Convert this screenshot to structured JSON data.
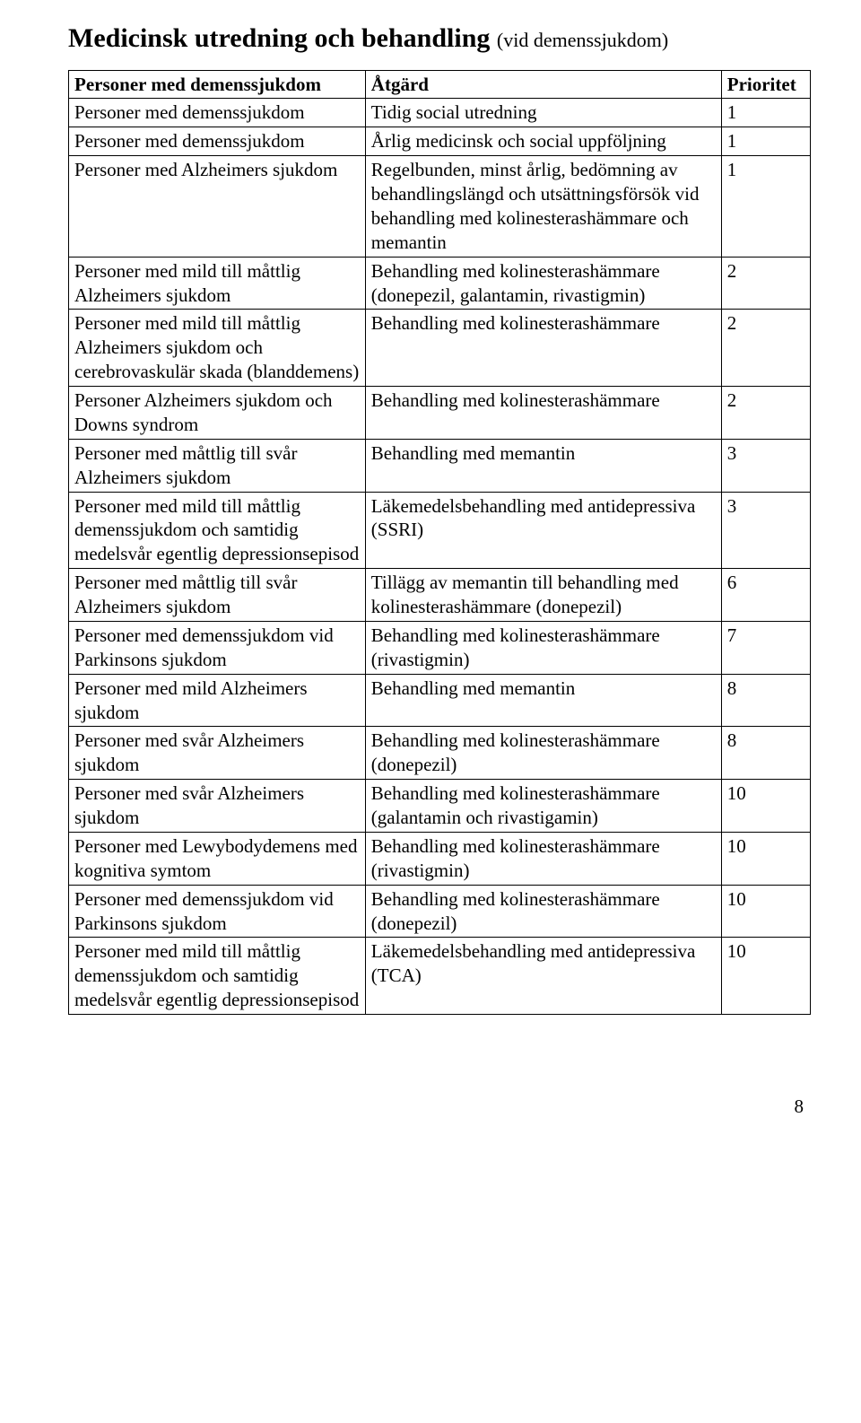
{
  "title_main": "Medicinsk utredning och behandling",
  "title_paren": "(vid demenssjukdom)",
  "headers": {
    "col1": "Personer med demenssjukdom",
    "col2": "Åtgärd",
    "col3": "Prioritet"
  },
  "rows": [
    {
      "c1": "Personer med demenssjukdom",
      "c2": "Tidig social utredning",
      "c3": "1"
    },
    {
      "c1": "Personer med demenssjukdom",
      "c2": "Årlig medicinsk och social uppföljning",
      "c3": "1"
    },
    {
      "c1": "Personer med Alzheimers sjukdom",
      "c2": "Regelbunden, minst årlig, bedömning av behandlingslängd och utsättningsförsök vid behandling med kolinesterashämmare och memantin",
      "c3": "1"
    },
    {
      "c1": "Personer med mild till måttlig Alzheimers sjukdom",
      "c2": "Behandling med kolinesterashämmare (donepezil, galantamin, rivastigmin)",
      "c3": "2"
    },
    {
      "c1": "Personer med mild till måttlig Alzheimers sjukdom och cerebrovaskulär skada (blanddemens)",
      "c2": "Behandling med kolinesterashämmare",
      "c3": "2"
    },
    {
      "c1": "Personer Alzheimers sjukdom och Downs syndrom",
      "c2": "Behandling med kolinesterashämmare",
      "c3": "2"
    },
    {
      "c1": "Personer med måttlig till svår Alzheimers sjukdom",
      "c2": "Behandling med memantin",
      "c3": "3"
    },
    {
      "c1": "Personer med mild till måttlig demenssjukdom och samtidig medelsvår egentlig depressionsepisod",
      "c2": "Läkemedelsbehandling med antidepressiva (SSRI)",
      "c3": "3"
    },
    {
      "c1": "Personer med måttlig till svår Alzheimers sjukdom",
      "c2": "Tillägg av memantin till behandling med kolinesterashämmare (donepezil)",
      "c3": "6"
    },
    {
      "c1": "Personer med demenssjukdom vid Parkinsons sjukdom",
      "c2": "Behandling med kolinesterashämmare (rivastigmin)",
      "c3": "7"
    },
    {
      "c1": "Personer med mild Alzheimers sjukdom",
      "c2": "Behandling med memantin",
      "c3": "8"
    },
    {
      "c1": "Personer med svår Alzheimers sjukdom",
      "c2": "Behandling med kolinesterashämmare (donepezil)",
      "c3": "8"
    },
    {
      "c1": "Personer med svår Alzheimers sjukdom",
      "c2": "Behandling med kolinesterashämmare (galantamin och rivastigamin)",
      "c3": "10"
    },
    {
      "c1": "Personer med Lewybodydemens med kognitiva symtom",
      "c2": "Behandling med kolinesterashämmare (rivastigmin)",
      "c3": "10"
    },
    {
      "c1": "Personer med demenssjukdom vid Parkinsons sjukdom",
      "c2": "Behandling med kolinesterashämmare (donepezil)",
      "c3": "10"
    },
    {
      "c1": "Personer med mild till måttlig demenssjukdom och samtidig medelsvår egentlig depressionsepisod",
      "c2": "Läkemedelsbehandling med antidepressiva (TCA)",
      "c3": "10"
    }
  ],
  "page_number": "8"
}
